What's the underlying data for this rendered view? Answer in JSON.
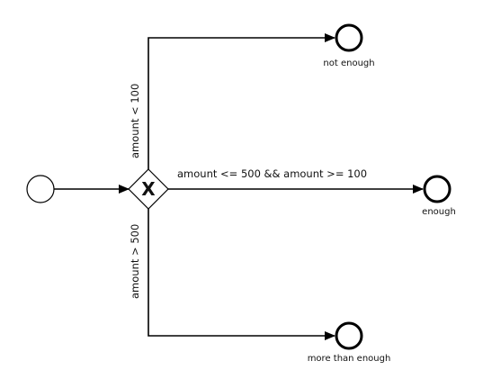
{
  "diagram": {
    "gateway": {
      "symbol": "X"
    },
    "flows": {
      "top": {
        "condition": "amount < 100"
      },
      "middle": {
        "condition": "amount <= 500 && amount >= 100"
      },
      "bottom": {
        "condition": "amount > 500"
      }
    },
    "end_events": {
      "top": {
        "label": "not enough"
      },
      "middle": {
        "label": "enough"
      },
      "bottom": {
        "label": "more than enough"
      }
    }
  },
  "colors": {
    "stroke": "#000000",
    "background": "#ffffff"
  }
}
